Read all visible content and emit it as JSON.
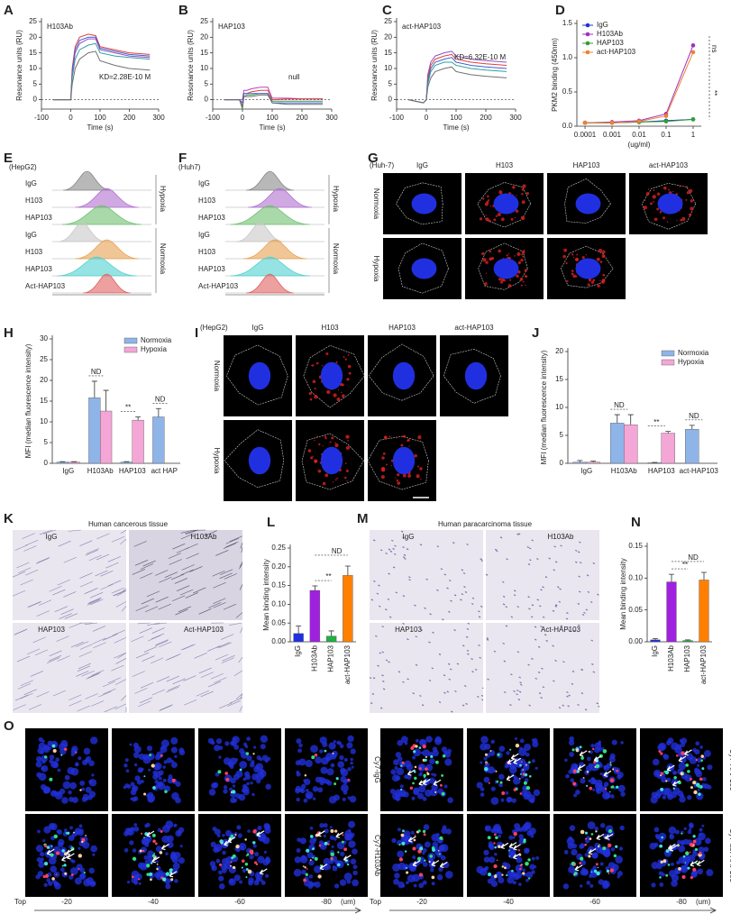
{
  "letters": [
    "A",
    "B",
    "C",
    "D",
    "E",
    "F",
    "G",
    "H",
    "I",
    "J",
    "K",
    "L",
    "M",
    "N",
    "O"
  ],
  "panels": {
    "E": {
      "cell_line": "(HepG2)",
      "rows": [
        "IgG",
        "H103",
        "HAP103",
        "IgG",
        "H103",
        "HAP103",
        "Act-HAP103"
      ],
      "groups": [
        "Hypoxia",
        "Normoxia"
      ]
    },
    "F": {
      "cell_line": "(Huh7)",
      "rows": [
        "IgG",
        "H103",
        "HAP103",
        "IgG",
        "H103",
        "HAP103",
        "Act-HAP103"
      ],
      "groups": [
        "Hypoxia",
        "Normoxia"
      ]
    },
    "G": {
      "cell_line": "(Huh-7)",
      "columns": [
        "IgG",
        "H103",
        "HAP103",
        "act-HAP103"
      ],
      "rows": [
        "Normoxia",
        "Hypoxia"
      ]
    },
    "I": {
      "cell_line": "(HepG2)",
      "columns": [
        "IgG",
        "H103",
        "HAP103",
        "act-HAP103"
      ],
      "rows": [
        "Normoxia",
        "Hypoxia"
      ]
    },
    "K": {
      "title": "Human cancerous tissue",
      "labels": [
        "IgG",
        "H103Ab",
        "HAP103",
        "Act-HAP103"
      ]
    },
    "M": {
      "title": "Human paracarcinoma tissue",
      "labels": [
        "IgG",
        "H103Ab",
        "HAP103",
        "Act-HAP103"
      ]
    },
    "O": {
      "rows": [
        "Cy7-IgG",
        "Cy7-H103Ab",
        "Cy7-HAP103",
        "Cy7-act-HAP103"
      ],
      "start": "Top",
      "depths": [
        "-20",
        "-40",
        "-60",
        "-80"
      ],
      "unit": "(um)"
    }
  },
  "chart_data": [
    {
      "type": "line",
      "label": "H103Ab",
      "annotations": [
        "KD=2.28E-10 M"
      ],
      "xlabel": "Time (s)",
      "ylabel": "Resonance units (RU)",
      "x": [
        -60,
        -10,
        0,
        5,
        15,
        30,
        60,
        85,
        100,
        150,
        200,
        270
      ],
      "xlim": [
        -100,
        300
      ],
      "xticks": [
        -100,
        0,
        100,
        200,
        300
      ],
      "ylim": [
        -3,
        25
      ],
      "yticks": [
        0,
        5,
        10,
        15,
        20,
        25
      ],
      "series": [
        {
          "color": "#e0403a",
          "values": [
            0,
            0,
            0,
            10,
            17,
            20,
            21,
            20.5,
            17,
            16,
            15,
            14.5
          ]
        },
        {
          "color": "#4060d0",
          "values": [
            0,
            0,
            0,
            9,
            16,
            19,
            20,
            20,
            16.5,
            15.5,
            14.5,
            14
          ]
        },
        {
          "color": "#9050c0",
          "values": [
            0,
            0,
            0,
            8,
            15,
            18,
            19.5,
            19.5,
            16,
            15,
            14,
            13.5
          ]
        },
        {
          "color": "#30a0a0",
          "values": [
            0,
            0,
            0,
            7,
            13,
            16,
            17.5,
            18,
            15,
            14,
            13.5,
            13
          ]
        },
        {
          "color": "#707070",
          "values": [
            0,
            0,
            0,
            5,
            10,
            13,
            15,
            15.5,
            12.5,
            11,
            10,
            9.5
          ]
        }
      ]
    },
    {
      "type": "line",
      "label": "HAP103",
      "annotations": [
        "null"
      ],
      "xlabel": "Time (s)",
      "ylabel": "Resonance units (RU)",
      "x": [
        -60,
        -10,
        0,
        5,
        15,
        30,
        60,
        85,
        100,
        150,
        200,
        270
      ],
      "xlim": [
        -100,
        300
      ],
      "xticks": [
        -100,
        0,
        100,
        200,
        300
      ],
      "ylim": [
        -3,
        25
      ],
      "yticks": [
        0,
        5,
        10,
        15,
        20,
        25
      ],
      "series": [
        {
          "color": "#c040c0",
          "values": [
            0,
            0,
            0,
            3,
            3,
            3.5,
            4,
            4,
            0.5,
            0.5,
            0.3,
            0.3
          ]
        },
        {
          "color": "#e0403a",
          "values": [
            0,
            0,
            -2,
            2,
            2,
            2.5,
            3,
            3,
            0,
            0.2,
            0.2,
            0.2
          ]
        },
        {
          "color": "#30a050",
          "values": [
            0,
            0,
            -3,
            1,
            1.5,
            1.5,
            2,
            2,
            -0.5,
            -0.5,
            -0.5,
            -0.5
          ]
        },
        {
          "color": "#4060d0",
          "values": [
            0,
            0,
            -1,
            2,
            2,
            2,
            2,
            2,
            -1,
            -1,
            -1,
            -1
          ]
        },
        {
          "color": "#707070",
          "values": [
            0,
            0,
            -2.5,
            1,
            1,
            1,
            1.5,
            1.5,
            -1,
            -1.5,
            -1.5,
            -1.5
          ]
        }
      ]
    },
    {
      "type": "line",
      "label": "act-HAP103",
      "annotations": [
        "KD=6.32E-10 M"
      ],
      "xlabel": "Time (s)",
      "ylabel": "Resonance units (RU)",
      "x": [
        -60,
        -10,
        0,
        5,
        15,
        30,
        60,
        85,
        100,
        150,
        200,
        270
      ],
      "xlim": [
        -100,
        300
      ],
      "xticks": [
        -100,
        0,
        100,
        200,
        300
      ],
      "ylim": [
        -3,
        25
      ],
      "yticks": [
        0,
        5,
        10,
        15,
        20,
        25
      ],
      "series": [
        {
          "color": "#9050c0",
          "values": [
            0,
            -1,
            0,
            8,
            12,
            14,
            15,
            15.5,
            14,
            13,
            12.5,
            12
          ]
        },
        {
          "color": "#e0403a",
          "values": [
            0,
            -1,
            0,
            7,
            11,
            13,
            14,
            14.5,
            13,
            12,
            11.5,
            11
          ]
        },
        {
          "color": "#4060d0",
          "values": [
            0,
            -1,
            0,
            6,
            10,
            12,
            13,
            13.5,
            12,
            11,
            10.5,
            10
          ]
        },
        {
          "color": "#30a0a0",
          "values": [
            0,
            -1,
            0,
            5,
            9,
            11,
            12,
            12,
            11,
            10,
            9.5,
            9
          ]
        },
        {
          "color": "#707070",
          "values": [
            0,
            -1,
            0,
            4,
            7,
            9,
            10,
            10.5,
            9,
            8,
            7.5,
            7
          ]
        }
      ]
    },
    {
      "type": "line",
      "logx": true,
      "markers": true,
      "legend": "upper left",
      "annotations": [
        "ns",
        "**"
      ],
      "xlabel": "(ug/ml)",
      "ylabel": "PKM2 binding (450nm)",
      "x": [
        0.0001,
        0.001,
        0.01,
        0.1,
        1
      ],
      "xlim": [
        5e-05,
        2
      ],
      "xticks": [
        0.0001,
        0.001,
        0.01,
        0.1,
        1
      ],
      "ylim": [
        0,
        1.5
      ],
      "yticks": [
        {
          "value": 0,
          "label": "0.0"
        },
        0.5,
        {
          "value": 1,
          "label": "1.0"
        },
        1.5
      ],
      "series": [
        {
          "name": "IgG",
          "color": "#2030d0",
          "values": [
            0.05,
            0.05,
            0.06,
            0.08,
            0.1
          ]
        },
        {
          "name": "H103Ab",
          "color": "#a030c0",
          "values": [
            0.05,
            0.06,
            0.08,
            0.18,
            1.18
          ]
        },
        {
          "name": "HAP103",
          "color": "#30a030",
          "values": [
            0.05,
            0.05,
            0.06,
            0.07,
            0.1
          ]
        },
        {
          "name": "act-HAP103",
          "color": "#f08030",
          "values": [
            0.05,
            0.05,
            0.07,
            0.15,
            1.08
          ]
        }
      ]
    },
    {
      "type": "bar",
      "legend": "upper right",
      "annotations": [
        "ND",
        "**",
        "ND"
      ],
      "ylabel": "MFI (median fluorescence intensity)",
      "categories": [
        "IgG",
        "H103Ab",
        "HAP103",
        "act HAP"
      ],
      "ylim": [
        0,
        30
      ],
      "yticks": [
        0,
        5,
        10,
        15,
        20,
        25,
        30
      ],
      "series": [
        {
          "name": "Normoxia",
          "color": "#8fb4e8",
          "values": [
            0.3,
            15.8,
            0.3,
            11.2
          ],
          "errors": [
            0.1,
            4,
            0.1,
            2
          ]
        },
        {
          "name": "Hypoxia",
          "color": "#f4a6d6",
          "values": [
            0.3,
            12.6,
            10.4,
            null
          ],
          "errors": [
            0.1,
            5,
            0.8,
            null
          ]
        }
      ]
    },
    {
      "type": "bar",
      "legend": "upper right",
      "annotations": [
        "ND",
        "**",
        "ND"
      ],
      "ylabel": "MFI (median fluorescence intensity)",
      "categories": [
        "IgG",
        "H103Ab",
        "HAP103",
        "act-HAP103"
      ],
      "ylim": [
        0,
        20
      ],
      "yticks": [
        0,
        5,
        10,
        15,
        20
      ],
      "series": [
        {
          "name": "Normoxia",
          "color": "#8fb4e8",
          "values": [
            0.2,
            7.2,
            0.1,
            6.1
          ],
          "errors": [
            0.3,
            1.5,
            0.05,
            0.7
          ]
        },
        {
          "name": "Hypoxia",
          "color": "#f4a6d6",
          "values": [
            0.2,
            6.9,
            5.4,
            null
          ],
          "errors": [
            0.2,
            1.8,
            0.3,
            null
          ]
        }
      ]
    },
    {
      "type": "bar",
      "annotations": [
        "**",
        "ND"
      ],
      "ylabel": "Mean binding intensity",
      "categories": [
        "IgG",
        "H103Ab",
        "HAP103",
        "act-HAP103"
      ],
      "values": [
        0.022,
        0.137,
        0.015,
        0.177
      ],
      "errors": [
        0.02,
        0.012,
        0.014,
        0.025
      ],
      "colors": [
        "#2030e0",
        "#a020e0",
        "#20b040",
        "#ff8000"
      ],
      "ylim": [
        0,
        0.25
      ],
      "yticks": [
        {
          "value": 0,
          "label": "0.00"
        },
        {
          "value": 0.05,
          "label": "0.05"
        },
        {
          "value": 0.1,
          "label": "0.10"
        },
        {
          "value": 0.15,
          "label": "0.15"
        },
        {
          "value": 0.2,
          "label": "0.20"
        },
        {
          "value": 0.25,
          "label": "0.25"
        }
      ]
    },
    {
      "type": "bar",
      "annotations": [
        "**",
        "ND"
      ],
      "ylabel": "Mean binding intensity",
      "categories": [
        "IgG",
        "H103Ab",
        "HAP103",
        "act-HAP103"
      ],
      "values": [
        0.003,
        0.094,
        0.002,
        0.097
      ],
      "errors": [
        0.002,
        0.012,
        0.001,
        0.012
      ],
      "colors": [
        "#2030e0",
        "#a020e0",
        "#20b040",
        "#ff8000"
      ],
      "ylim": [
        0,
        0.15
      ],
      "yticks": [
        {
          "value": 0,
          "label": "0.00"
        },
        {
          "value": 0.05,
          "label": "0.05"
        },
        {
          "value": 0.1,
          "label": "0.10"
        },
        {
          "value": 0.15,
          "label": "0.15"
        }
      ]
    }
  ]
}
